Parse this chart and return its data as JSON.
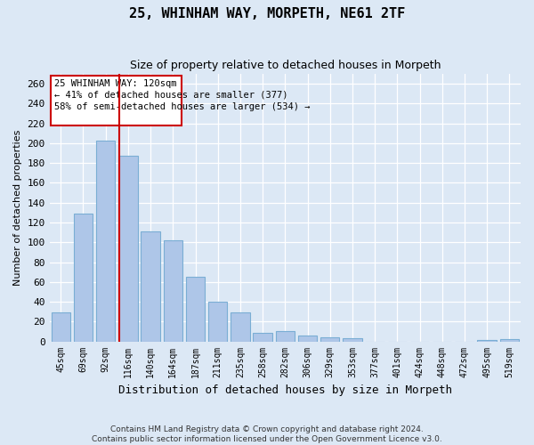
{
  "title1": "25, WHINHAM WAY, MORPETH, NE61 2TF",
  "title2": "Size of property relative to detached houses in Morpeth",
  "xlabel": "Distribution of detached houses by size in Morpeth",
  "ylabel": "Number of detached properties",
  "categories": [
    "45sqm",
    "69sqm",
    "92sqm",
    "116sqm",
    "140sqm",
    "164sqm",
    "187sqm",
    "211sqm",
    "235sqm",
    "258sqm",
    "282sqm",
    "306sqm",
    "329sqm",
    "353sqm",
    "377sqm",
    "401sqm",
    "424sqm",
    "448sqm",
    "472sqm",
    "495sqm",
    "519sqm"
  ],
  "values": [
    29,
    129,
    203,
    187,
    111,
    102,
    65,
    40,
    29,
    9,
    10,
    6,
    4,
    3,
    0,
    0,
    0,
    0,
    0,
    1,
    2
  ],
  "bar_color": "#aec6e8",
  "bar_edge_color": "#7aaed4",
  "red_line_index": 3,
  "annotation_text": "25 WHINHAM WAY: 120sqm\n← 41% of detached houses are smaller (377)\n58% of semi-detached houses are larger (534) →",
  "annotation_box_color": "#ffffff",
  "annotation_box_edge": "#cc0000",
  "red_line_color": "#cc0000",
  "background_color": "#dce8f5",
  "grid_color": "#ffffff",
  "footer_text": "Contains HM Land Registry data © Crown copyright and database right 2024.\nContains public sector information licensed under the Open Government Licence v3.0.",
  "ylim": [
    0,
    270
  ],
  "yticks": [
    0,
    20,
    40,
    60,
    80,
    100,
    120,
    140,
    160,
    180,
    200,
    220,
    240,
    260
  ]
}
